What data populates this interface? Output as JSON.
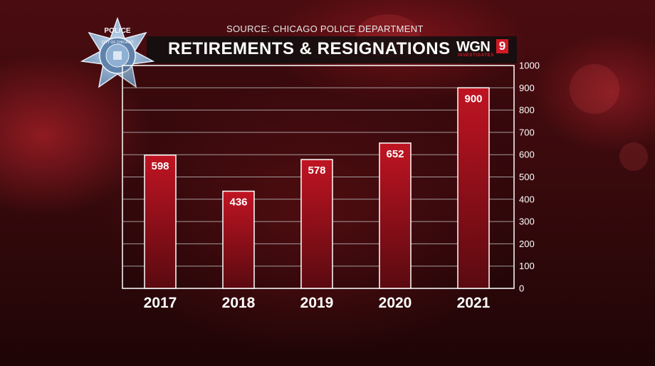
{
  "header": {
    "source": "SOURCE: CHICAGO POLICE DEPARTMENT",
    "title": "RETIREMENTS & RESIGNATIONS"
  },
  "logo": {
    "brand": "WGN",
    "number": "9",
    "subtitle": "INVESTIGATES"
  },
  "badge": {
    "top_text": "POLICE",
    "ring_text": "CITY OF CHICAGO"
  },
  "colors": {
    "bar_top": "#c01422",
    "bar_bottom": "#5a0a10",
    "bar_border": "#ffffff",
    "grid": "#bfbfbf",
    "text": "#ffffff"
  },
  "chart_data": {
    "type": "bar",
    "categories": [
      "2017",
      "2018",
      "2019",
      "2020",
      "2021"
    ],
    "values": [
      598,
      436,
      578,
      652,
      900
    ],
    "data_labels": [
      "598",
      "436",
      "578",
      "652",
      "900"
    ],
    "ylim": [
      0,
      1000
    ],
    "yticks": [
      0,
      100,
      200,
      300,
      400,
      500,
      600,
      700,
      800,
      900,
      1000
    ],
    "ytick_labels": [
      "0",
      "100",
      "200",
      "300",
      "400",
      "500",
      "600",
      "700",
      "800",
      "900",
      "1000"
    ],
    "y_axis_position": "right",
    "grid": true,
    "title": "RETIREMENTS & RESIGNATIONS",
    "xlabel": "",
    "ylabel": ""
  }
}
